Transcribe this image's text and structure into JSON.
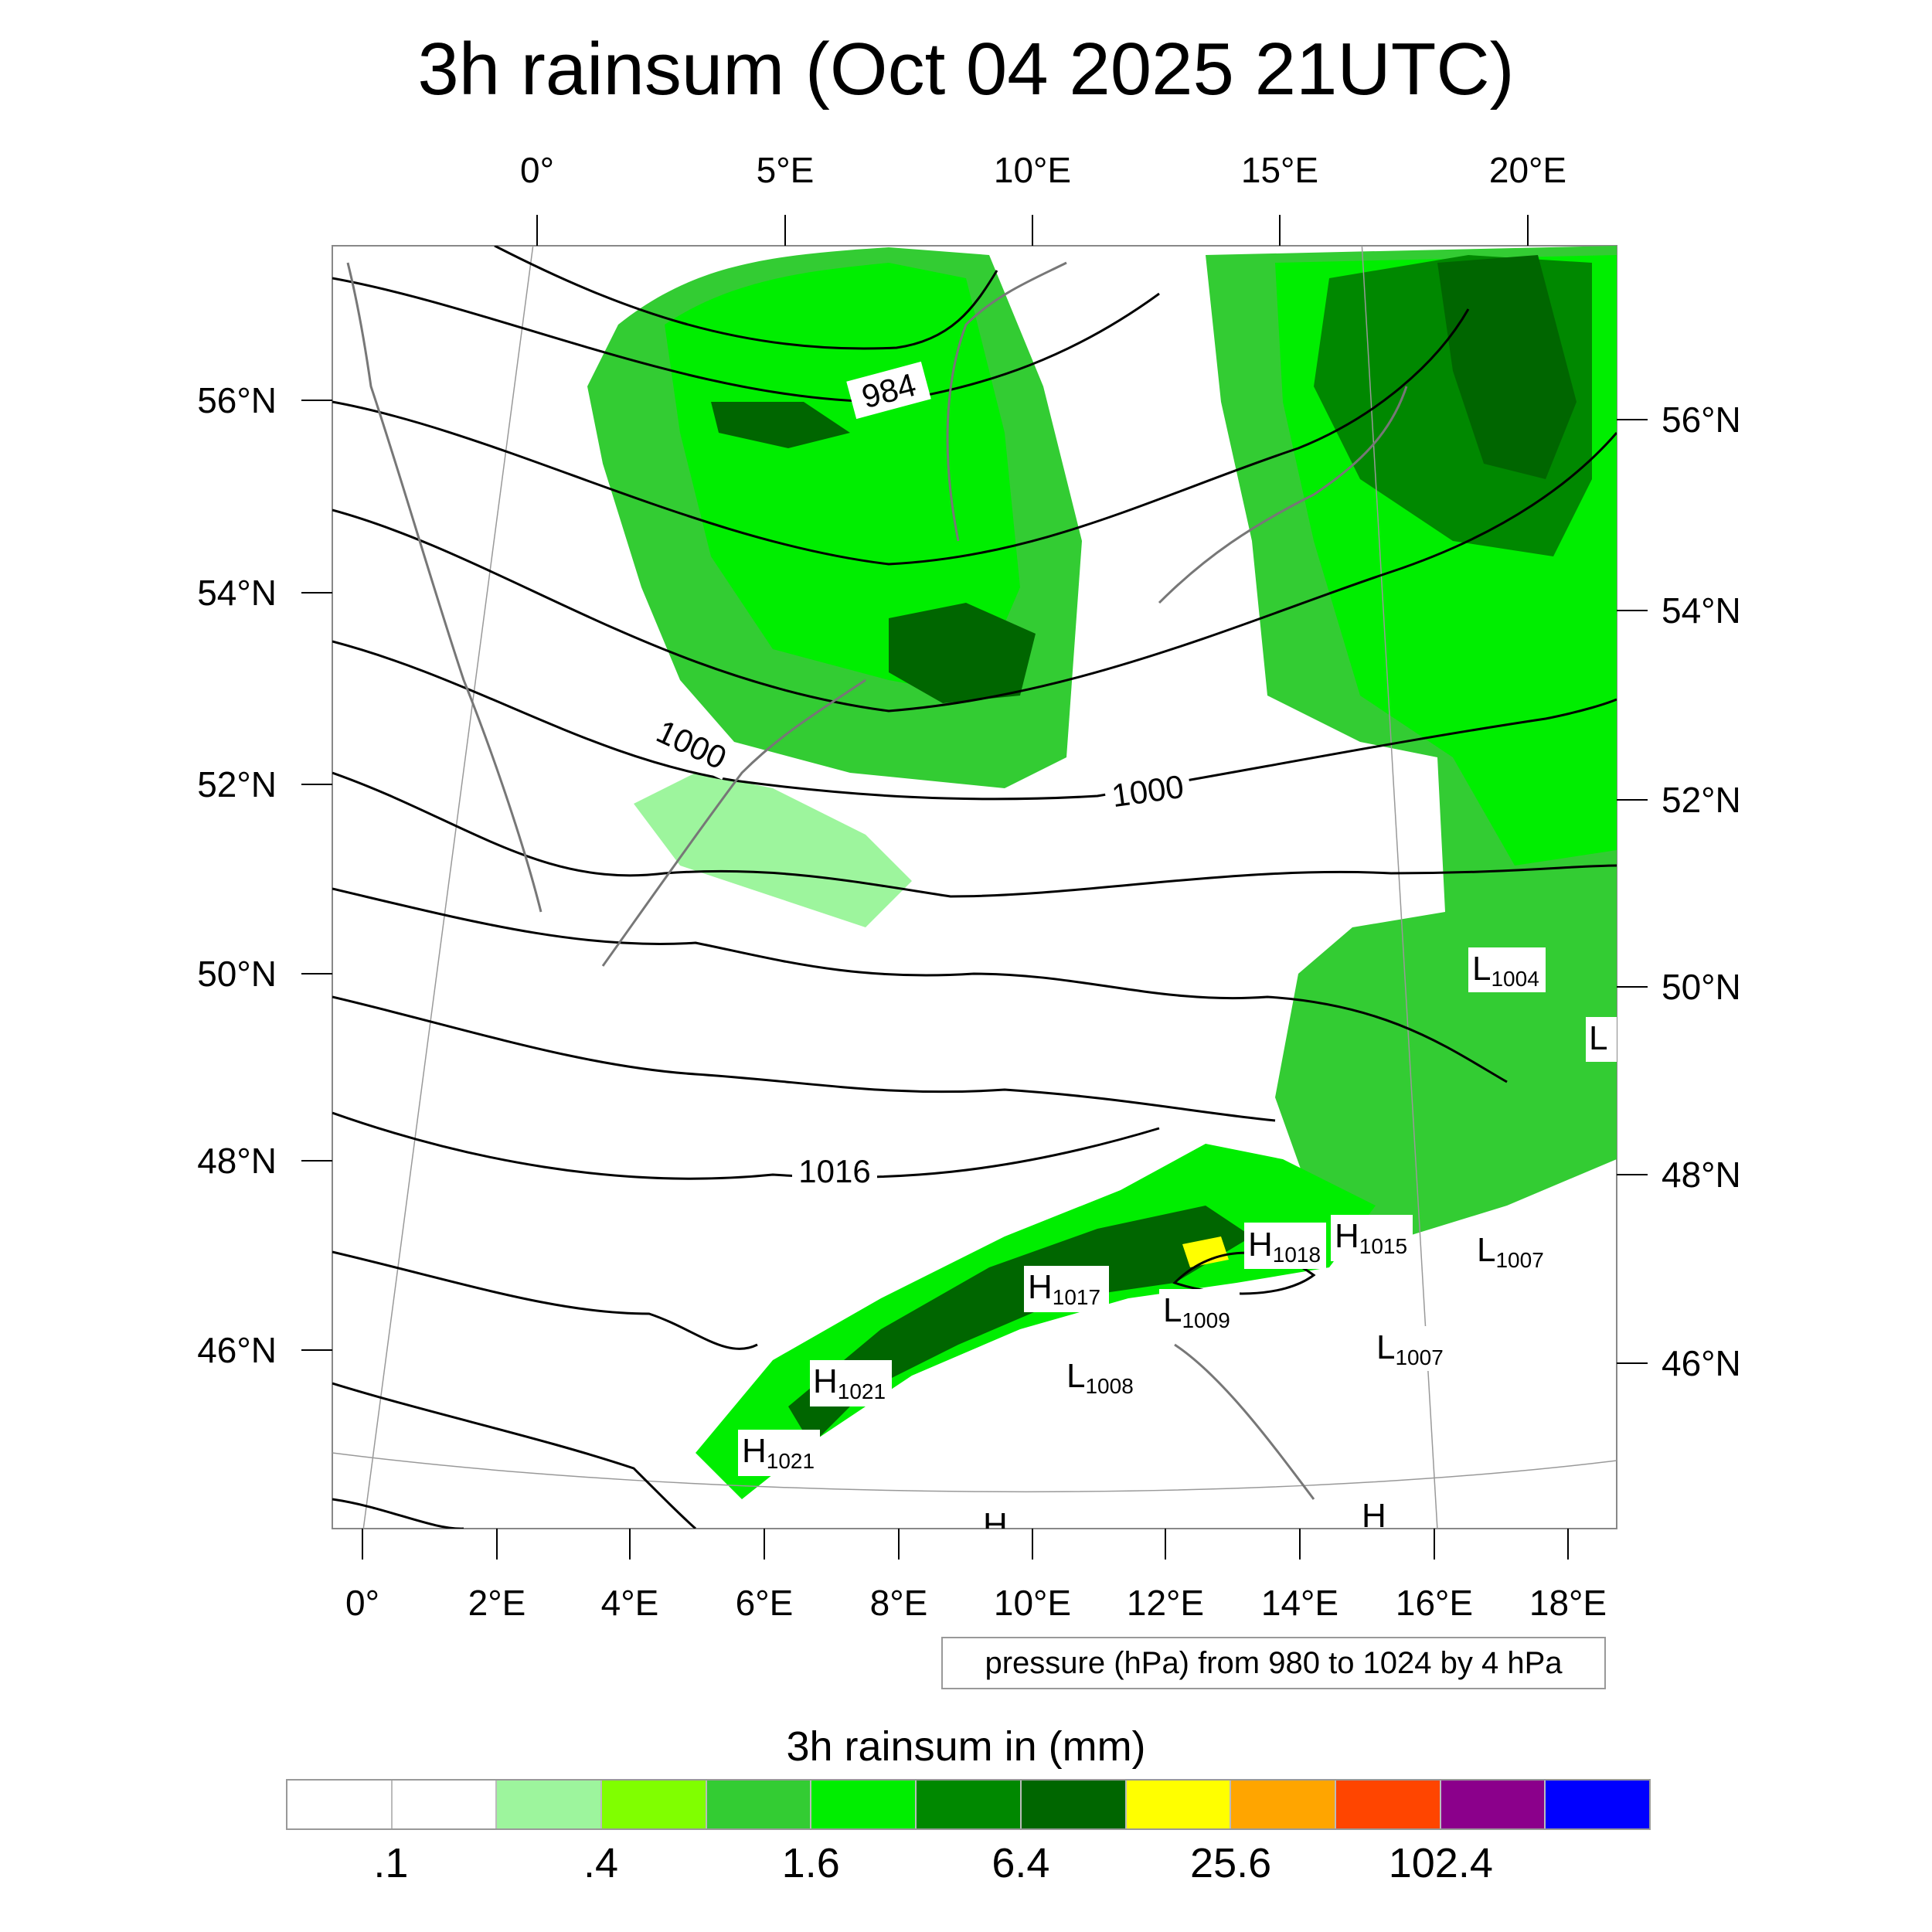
{
  "title": "3h rainsum (Oct 04 2025 21UTC)",
  "map": {
    "lon_ticks_top": [
      "0°",
      "5°E",
      "10°E",
      "15°E",
      "20°E"
    ],
    "lon_ticks_bottom": [
      "0°",
      "2°E",
      "4°E",
      "6°E",
      "8°E",
      "10°E",
      "12°E",
      "14°E",
      "16°E",
      "18°E"
    ],
    "lat_ticks_left": [
      "56°N",
      "54°N",
      "52°N",
      "50°N",
      "48°N",
      "46°N"
    ],
    "lat_ticks_right": [
      "56°N",
      "54°N",
      "52°N",
      "50°N",
      "48°N",
      "46°N"
    ],
    "isobar_labels": [
      "984",
      "1000",
      "1000",
      "1016"
    ],
    "pressure_centers": [
      {
        "letter": "L",
        "value": "1004"
      },
      {
        "letter": "L",
        "value": ""
      },
      {
        "letter": "H",
        "value": "1018"
      },
      {
        "letter": "H",
        "value": "1015"
      },
      {
        "letter": "L",
        "value": "1007"
      },
      {
        "letter": "H",
        "value": "1017"
      },
      {
        "letter": "L",
        "value": "1009"
      },
      {
        "letter": "L",
        "value": "1007"
      },
      {
        "letter": "H",
        "value": "1021"
      },
      {
        "letter": "L",
        "value": "1008"
      },
      {
        "letter": "H",
        "value": "1021"
      },
      {
        "letter": "H",
        "value": ""
      },
      {
        "letter": "H",
        "value": ""
      }
    ]
  },
  "pressure_note": "pressure (hPa) from 980 to 1024 by 4 hPa",
  "legend": {
    "title": "3h rainsum in (mm)",
    "colors": [
      "#ffffff",
      "#ffffff",
      "#9df59d",
      "#80ff00",
      "#33cc33",
      "#00ee00",
      "#008800",
      "#006600",
      "#ffff00",
      "#ffa500",
      "#ff4500",
      "#8b008b",
      "#0000ff"
    ],
    "labels": [
      ".1",
      ".4",
      "1.6",
      "6.4",
      "25.6",
      "102.4"
    ]
  }
}
